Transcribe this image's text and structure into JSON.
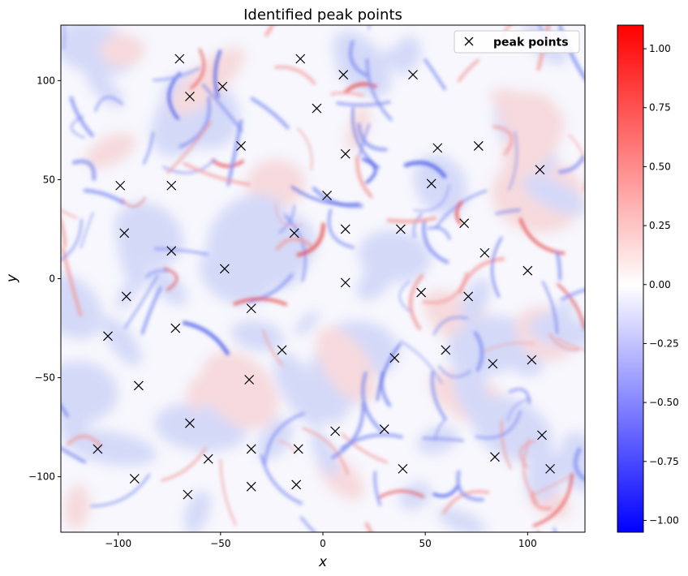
{
  "chart_data": {
    "type": "scatter",
    "title": "Identified peak points",
    "xlabel": "x",
    "ylabel": "y",
    "xlim": [
      -128,
      128
    ],
    "ylim": [
      -128,
      128
    ],
    "x_ticks": [
      -100,
      -50,
      0,
      50,
      100
    ],
    "y_ticks": [
      -100,
      -50,
      0,
      50,
      100
    ],
    "x_tick_labels": [
      "−100",
      "−50",
      "0",
      "50",
      "100"
    ],
    "y_tick_labels": [
      "−100",
      "−50",
      "0",
      "50",
      "100"
    ],
    "grid": false,
    "legend": {
      "placement": "top-right",
      "entries": [
        "peak points"
      ]
    },
    "background": "vorticity-style field, diverging blue-white-red colormap",
    "series": [
      {
        "name": "peak points",
        "marker": "x",
        "color": "#000000",
        "points": [
          [
            -70,
            111
          ],
          [
            -11,
            111
          ],
          [
            10,
            103
          ],
          [
            44,
            103
          ],
          [
            -49,
            97
          ],
          [
            -65,
            92
          ],
          [
            -3,
            86
          ],
          [
            -40,
            67
          ],
          [
            11,
            63
          ],
          [
            56,
            66
          ],
          [
            76,
            67
          ],
          [
            106,
            55
          ],
          [
            -99,
            47
          ],
          [
            -74,
            47
          ],
          [
            53,
            48
          ],
          [
            2,
            42
          ],
          [
            -97,
            23
          ],
          [
            -14,
            23
          ],
          [
            11,
            25
          ],
          [
            38,
            25
          ],
          [
            69,
            28
          ],
          [
            -74,
            14
          ],
          [
            79,
            13
          ],
          [
            -48,
            5
          ],
          [
            100,
            4
          ],
          [
            11,
            -2
          ],
          [
            -96,
            -9
          ],
          [
            48,
            -7
          ],
          [
            71,
            -9
          ],
          [
            -35,
            -15
          ],
          [
            -105,
            -29
          ],
          [
            -72,
            -25
          ],
          [
            -20,
            -36
          ],
          [
            35,
            -40
          ],
          [
            60,
            -36
          ],
          [
            83,
            -43
          ],
          [
            102,
            -41
          ],
          [
            -36,
            -51
          ],
          [
            -90,
            -54
          ],
          [
            -65,
            -73
          ],
          [
            6,
            -77
          ],
          [
            30,
            -76
          ],
          [
            107,
            -79
          ],
          [
            -110,
            -86
          ],
          [
            -35,
            -86
          ],
          [
            -12,
            -86
          ],
          [
            -56,
            -91
          ],
          [
            84,
            -90
          ],
          [
            39,
            -96
          ],
          [
            111,
            -96
          ],
          [
            -92,
            -101
          ],
          [
            -35,
            -105
          ],
          [
            -13,
            -104
          ],
          [
            -66,
            -109
          ]
        ]
      }
    ],
    "colorbar": {
      "range": [
        -1.05,
        1.1
      ],
      "ticks": [
        -1.0,
        -0.75,
        -0.5,
        -0.25,
        0.0,
        0.25,
        0.5,
        0.75,
        1.0
      ],
      "tick_labels": [
        "−1.00",
        "−0.75",
        "−0.50",
        "−0.25",
        "0.00",
        "0.25",
        "0.50",
        "0.75",
        "1.00"
      ],
      "colormap": "bwr",
      "colors": {
        "low": "#0000ff",
        "mid": "#ffffff",
        "high": "#ff0000"
      }
    }
  }
}
